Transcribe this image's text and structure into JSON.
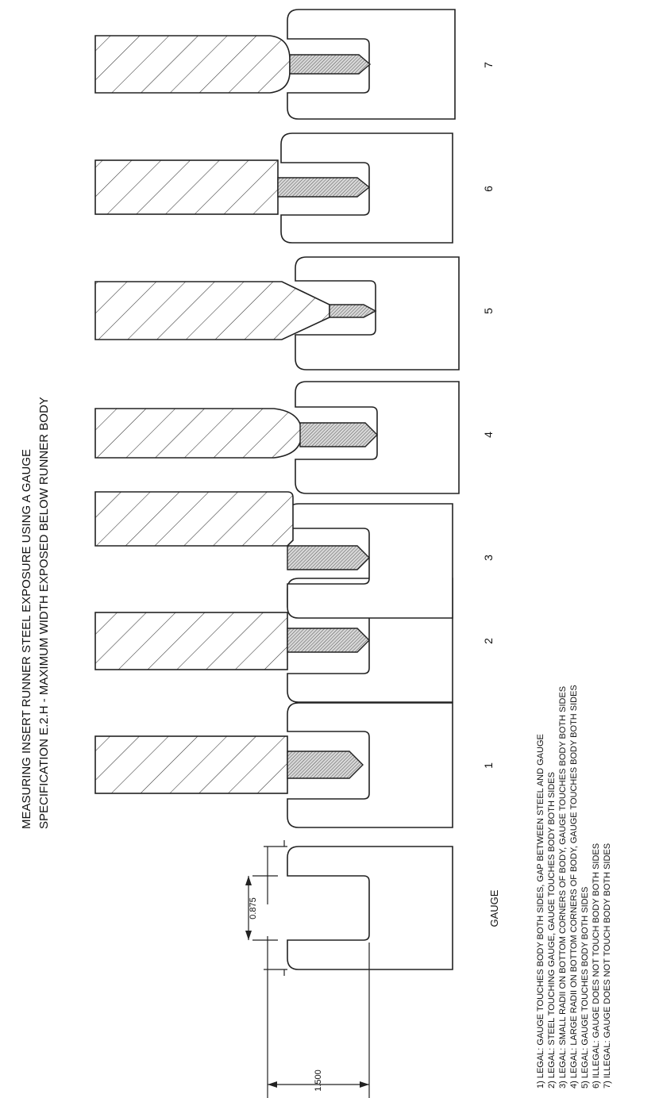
{
  "title": {
    "line1": "MEASURING INSERT RUNNER STEEL EXPOSURE USING A GAUGE",
    "line2": "SPECIFICATION E.2.H - MAXIMUM WIDTH EXPOSED BELOW RUNNER BODY"
  },
  "gauge": {
    "label": "GAUGE",
    "dim_slot": "0.875",
    "dim_width": "1.500"
  },
  "cases": [
    {
      "number": "1",
      "status": "legal"
    },
    {
      "number": "2",
      "status": "legal"
    },
    {
      "number": "3",
      "status": "legal"
    },
    {
      "number": "4",
      "status": "legal"
    },
    {
      "number": "5",
      "status": "legal"
    },
    {
      "number": "6",
      "status": "illegal"
    },
    {
      "number": "7",
      "status": "illegal"
    }
  ],
  "notes": [
    "1) LEGAL: GAUGE TOUCHES BODY BOTH SIDES, GAP BETWEEN STEEL AND GAUGE",
    "2) LEGAL: STEEL TOUCHING GAUGE, GAUGE TOUCHES BODY BOTH SIDES",
    "3) LEGAL: SMALL RADII ON BOTTOM CORNERS OF BODY, GAUGE TOUCHES BODY BOTH SIDES",
    "4) LEGAL: LARGE RADII ON BOTTOM CORNERS OF BODY, GAUGE TOUCHES BODY BOTH SIDES",
    "5) LEGAL: GAUGE TOUCHES BODY BOTH SIDES",
    "6) ILLEGAL: GAUGE DOES NOT TOUCH BODY BOTH SIDES",
    "7) ILLEGAL: GAUGE DOES NOT TOUCH BODY BOTH SIDES"
  ]
}
